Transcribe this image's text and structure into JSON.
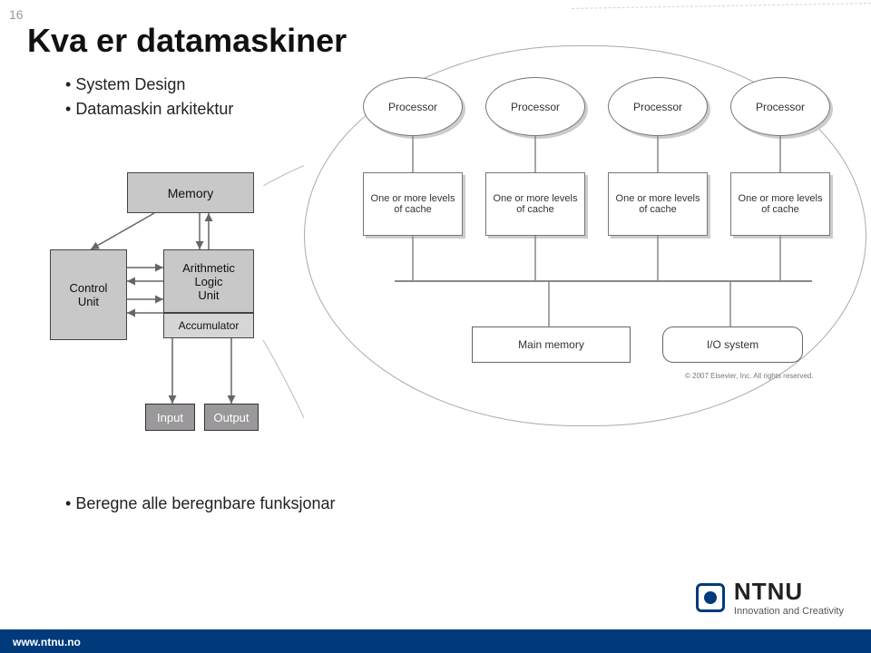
{
  "slide_number": "16",
  "title": "Kva er datamaskiner",
  "bullets": [
    "System Design",
    "Datamaskin arkitektur"
  ],
  "third_bullet": "Beregne alle beregnbare funksjonar",
  "footer_url": "www.ntnu.no",
  "logo": {
    "name": "NTNU",
    "tagline": "Innovation and Creativity"
  },
  "left_diagram": {
    "type": "flowchart",
    "background_color": "#ffffff",
    "nodes": {
      "memory": {
        "label": "Memory",
        "fill": "#c8c8c8",
        "fontsize": 14
      },
      "control": {
        "label": "Control\nUnit",
        "fill": "#c8c8c8",
        "fontsize": 13
      },
      "alu": {
        "label": "Arithmetic\nLogic\nUnit",
        "fill": "#c8c8c8",
        "fontsize": 13
      },
      "accum": {
        "label": "Accumulator",
        "fill": "#d6d6d6",
        "fontsize": 12
      },
      "input": {
        "label": "Input",
        "fill": "#9a989a",
        "fontsize": 13,
        "text_color": "#ffffff"
      },
      "output": {
        "label": "Output",
        "fill": "#9a989a",
        "fontsize": 13,
        "text_color": "#ffffff"
      }
    },
    "edges": [
      [
        "memory",
        "alu",
        "bidir"
      ],
      [
        "memory",
        "control",
        "down"
      ],
      [
        "control",
        "alu",
        "bidir-top"
      ],
      [
        "control",
        "alu",
        "bidir-bot"
      ],
      [
        "accum",
        "input",
        "down"
      ],
      [
        "accum",
        "output",
        "down"
      ]
    ],
    "arrow_color": "#666666"
  },
  "right_diagram": {
    "type": "flowchart",
    "bubble_border": "#aaaaaa",
    "processor_label": "Processor",
    "cache_label": "One or more levels of cache",
    "processor_count": 4,
    "main_memory": "Main memory",
    "io_system": "I/O system",
    "node_border": "#777777",
    "shadow_color": "#cccccc",
    "bus_color": "#888888",
    "copyright": "© 2007 Elsevier, Inc. All rights reserved."
  }
}
